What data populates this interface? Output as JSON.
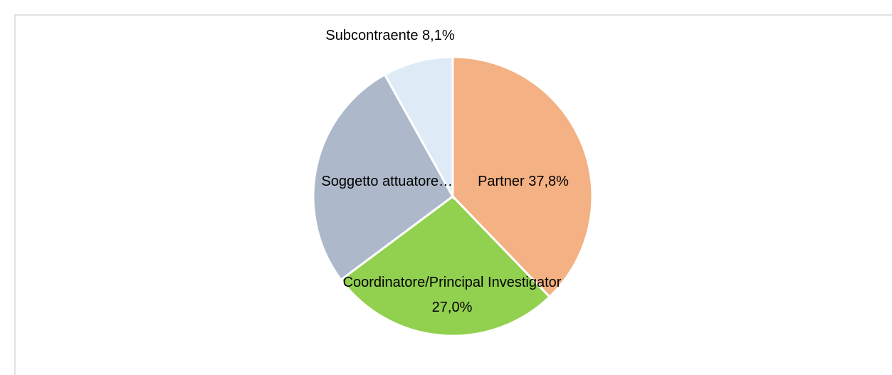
{
  "chart_data": {
    "type": "pie",
    "categories": [
      "Partner",
      "Coordinatore/Principal Investigator",
      "Soggetto attuatore…",
      "Subcontraente"
    ],
    "values": [
      37.8,
      27.0,
      27.1,
      8.1
    ],
    "value_labels": [
      "37,8%",
      "27,0%",
      null,
      "8,1%"
    ],
    "colors": [
      "#F4B183",
      "#92D050",
      "#ADB9CA",
      "#DEEBF7"
    ]
  }
}
